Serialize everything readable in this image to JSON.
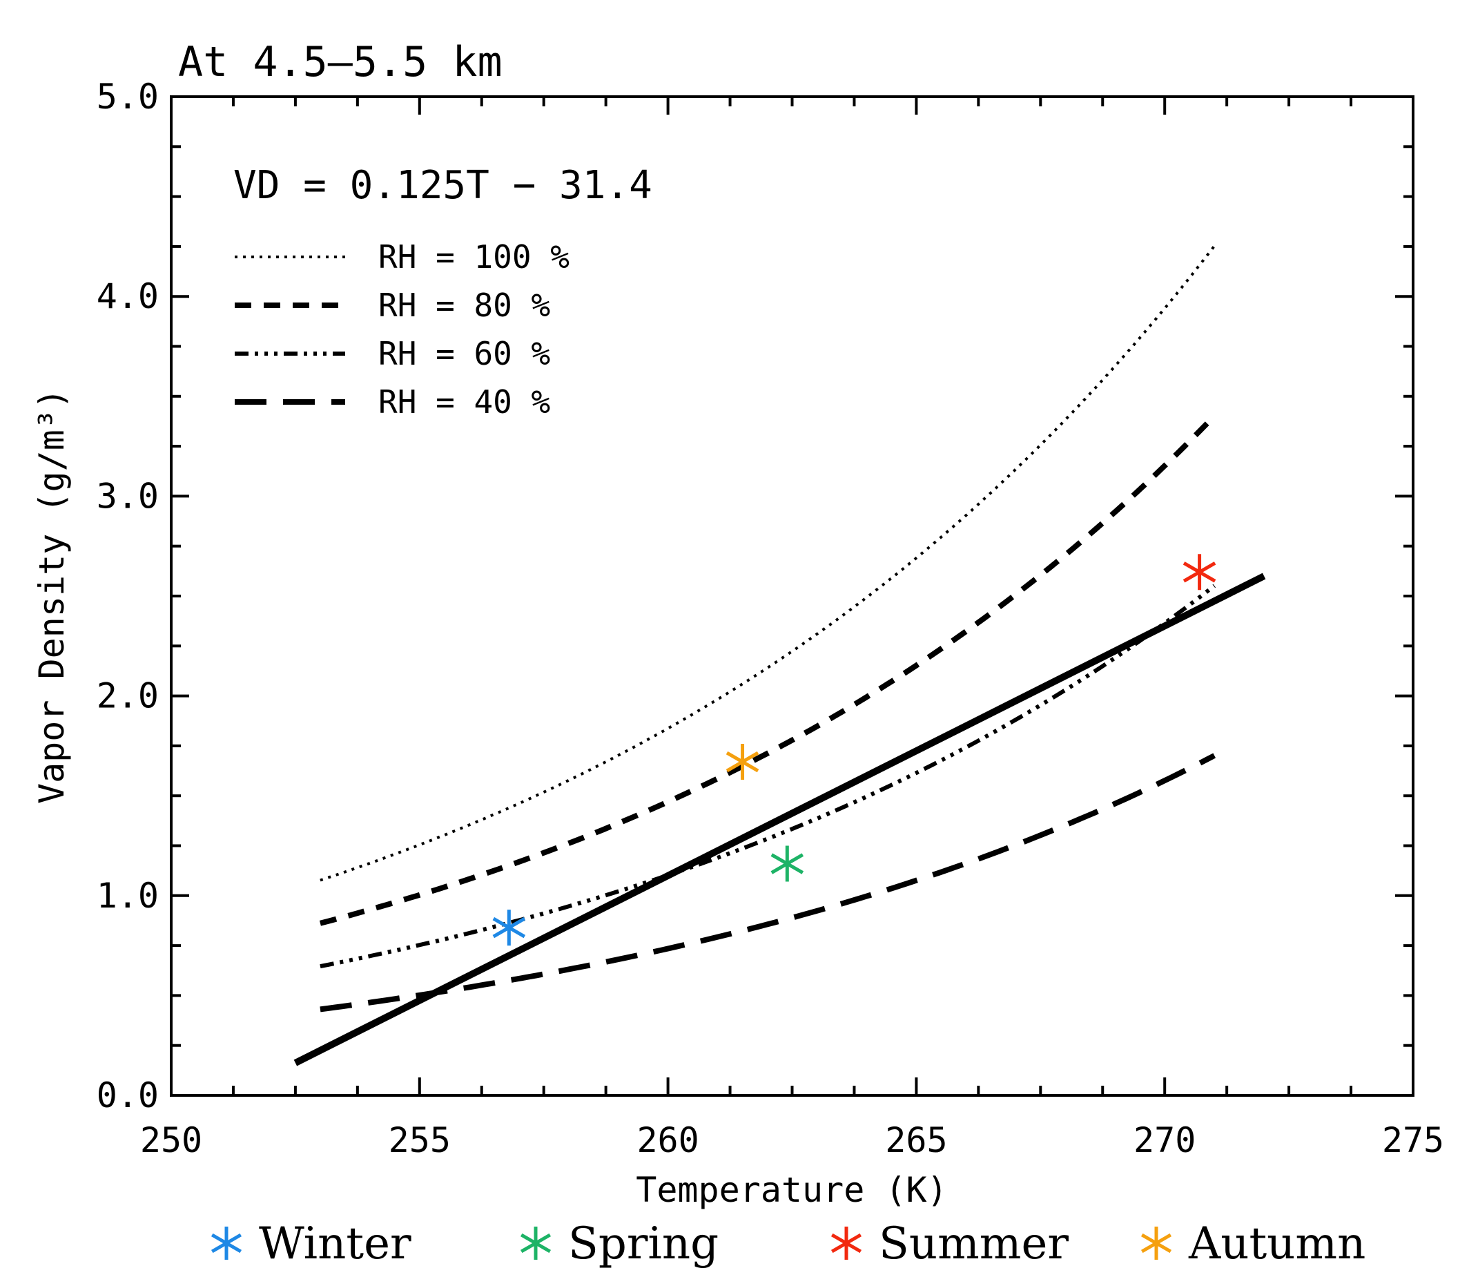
{
  "chart_data": {
    "type": "line",
    "title": "At 4.5–5.5 km",
    "xlabel": "Temperature (K)",
    "ylabel": "Vapor Density (g/m³)",
    "xlim": [
      250,
      275
    ],
    "ylim": [
      0.0,
      5.0
    ],
    "x_ticks": [
      "250",
      "255",
      "260",
      "265",
      "270",
      "275"
    ],
    "y_ticks": [
      "0.0",
      "1.0",
      "2.0",
      "3.0",
      "4.0",
      "5.0"
    ],
    "x_tick_values": [
      250,
      255,
      260,
      265,
      270,
      275
    ],
    "y_tick_values": [
      0,
      1,
      2,
      3,
      4,
      5
    ],
    "x_minor_step": 1.25,
    "y_minor_step": 0.25,
    "fit": {
      "equation": "VD = 0.125T − 31.4",
      "slope": 0.125,
      "intercept": -31.4,
      "x_range": [
        252.5,
        272.0
      ],
      "color": "#000000"
    },
    "rh_curves": [
      {
        "name": "RH = 100 %",
        "rh": 1.0,
        "style": "dotted",
        "x_range": [
          253.0,
          271.0
        ]
      },
      {
        "name": "RH = 80 %",
        "rh": 0.8,
        "style": "dashed",
        "x_range": [
          253.0,
          271.0
        ]
      },
      {
        "name": "RH = 60 %",
        "rh": 0.6,
        "style": "dash-dot-dot-dot",
        "x_range": [
          253.0,
          271.0
        ]
      },
      {
        "name": "RH = 40 %",
        "rh": 0.4,
        "style": "long-dash",
        "x_range": [
          253.0,
          271.0
        ]
      }
    ],
    "saturation_model": {
      "a": 1.077,
      "b": 0.0763,
      "t0": 253.0
    },
    "seasons": [
      {
        "name": "Winter",
        "x": 256.8,
        "y": 0.84,
        "color": "#1e88e5"
      },
      {
        "name": "Spring",
        "x": 262.4,
        "y": 1.16,
        "color": "#1db366"
      },
      {
        "name": "Summer",
        "x": 270.7,
        "y": 2.62,
        "color": "#f2290f"
      },
      {
        "name": "Autumn",
        "x": 261.5,
        "y": 1.67,
        "color": "#f5a00f"
      }
    ]
  }
}
